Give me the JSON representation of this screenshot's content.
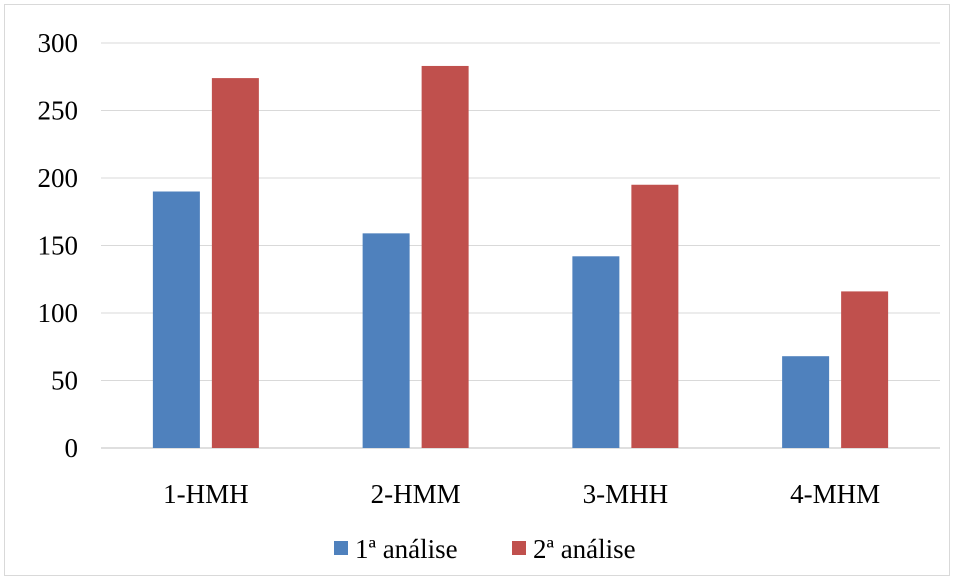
{
  "chart_data": {
    "type": "bar",
    "categories": [
      "1-HMH",
      "2-HMM",
      "3-MHH",
      "4-MHM"
    ],
    "series": [
      {
        "name": "1ª análise",
        "color": "#4f81bd",
        "values": [
          190,
          159,
          142,
          68
        ]
      },
      {
        "name": "2ª análise",
        "color": "#c0504d",
        "values": [
          274,
          283,
          195,
          116
        ]
      }
    ],
    "yticks": [
      "0",
      "50",
      "100",
      "150",
      "200",
      "250",
      "300"
    ],
    "ylim": [
      0,
      300
    ],
    "grid": true,
    "legend_position": "bottom"
  }
}
